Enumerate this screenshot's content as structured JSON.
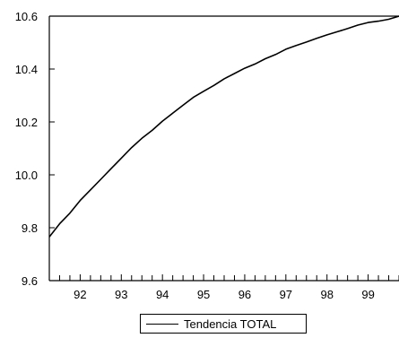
{
  "chart_data": {
    "type": "line",
    "title": "",
    "xlabel": "",
    "ylabel": "",
    "xlim": [
      91.25,
      99.75
    ],
    "ylim": [
      9.6,
      10.6
    ],
    "yticks": [
      "9.6",
      "9.8",
      "10.0",
      "10.2",
      "10.4",
      "10.6"
    ],
    "yticks_values": [
      9.6,
      9.8,
      10.0,
      10.2,
      10.4,
      10.6
    ],
    "xticks": [
      "92",
      "93",
      "94",
      "95",
      "96",
      "97",
      "98",
      "99"
    ],
    "xticks_values": [
      92,
      93,
      94,
      95,
      96,
      97,
      98,
      99
    ],
    "grid": false,
    "legend_position": "bottom-center",
    "series": [
      {
        "name": "Tendencia TOTAL",
        "color": "#000000",
        "x": [
          91.25,
          91.5,
          91.75,
          92.0,
          92.25,
          92.5,
          92.75,
          93.0,
          93.25,
          93.5,
          93.75,
          94.0,
          94.25,
          94.5,
          94.75,
          95.0,
          95.25,
          95.5,
          95.75,
          96.0,
          96.25,
          96.5,
          96.75,
          97.0,
          97.25,
          97.5,
          97.75,
          98.0,
          98.25,
          98.5,
          98.75,
          99.0,
          99.25,
          99.5,
          99.75
        ],
        "y": [
          9.765,
          9.815,
          9.855,
          9.903,
          9.943,
          9.983,
          10.023,
          10.063,
          10.103,
          10.138,
          10.168,
          10.203,
          10.233,
          10.263,
          10.293,
          10.316,
          10.338,
          10.363,
          10.383,
          10.403,
          10.419,
          10.439,
          10.455,
          10.475,
          10.489,
          10.502,
          10.516,
          10.529,
          10.541,
          10.553,
          10.566,
          10.576,
          10.581,
          10.588,
          10.6
        ]
      }
    ]
  },
  "legend": {
    "label": "Tendencia TOTAL"
  }
}
